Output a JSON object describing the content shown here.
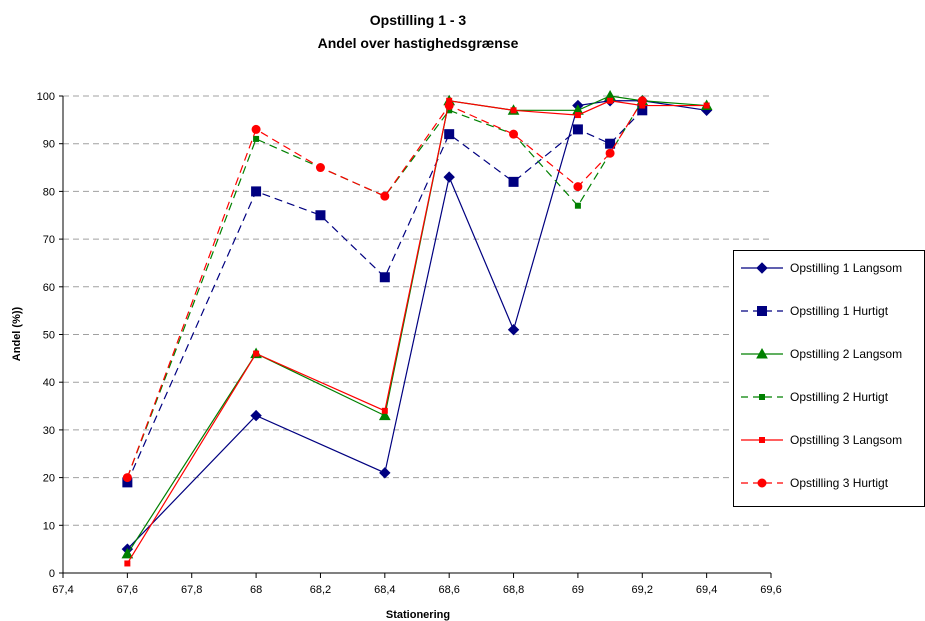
{
  "chart_data": {
    "type": "line",
    "title": "Opstilling 1 - 3",
    "subtitle": "Andel over hastighedsgrænse",
    "xlabel": "Stationering",
    "ylabel": "Andel (%))",
    "xlim": [
      67.4,
      69.6
    ],
    "ylim": [
      0,
      100
    ],
    "x_ticks": [
      67.4,
      67.6,
      67.8,
      68,
      68.2,
      68.4,
      68.6,
      68.8,
      69,
      69.2,
      69.4,
      69.6
    ],
    "x_tick_labels": [
      "67,4",
      "67,6",
      "67,8",
      "68",
      "68,2",
      "68,4",
      "68,6",
      "68,8",
      "69",
      "69,2",
      "69,4",
      "69,6"
    ],
    "y_ticks": [
      0,
      10,
      20,
      30,
      40,
      50,
      60,
      70,
      80,
      90,
      100
    ],
    "y_tick_labels": [
      "0",
      "10",
      "20",
      "30",
      "40",
      "50",
      "60",
      "70",
      "80",
      "90",
      "100"
    ],
    "grid": "horizontal dashed",
    "legend_position": "right",
    "series": [
      {
        "name": "Opstilling 1 Langsom",
        "color": "#000080",
        "dash": "solid",
        "marker": "diamond",
        "points": [
          [
            67.6,
            5
          ],
          [
            68,
            33
          ],
          [
            68.4,
            21
          ],
          [
            68.6,
            83
          ],
          [
            68.8,
            51
          ],
          [
            69,
            98
          ],
          [
            69.1,
            99
          ],
          [
            69.2,
            99
          ],
          [
            69.4,
            97
          ]
        ]
      },
      {
        "name": "Opstilling 1 Hurtigt",
        "color": "#000080",
        "dash": "dashed",
        "marker": "square",
        "points": [
          [
            67.6,
            19
          ],
          [
            68,
            80
          ],
          [
            68.2,
            75
          ],
          [
            68.4,
            62
          ],
          [
            68.6,
            92
          ],
          [
            68.8,
            82
          ],
          [
            69,
            93
          ],
          [
            69.1,
            90
          ],
          [
            69.2,
            97
          ]
        ]
      },
      {
        "name": "Opstilling 2 Langsom",
        "color": "#008000",
        "dash": "solid",
        "marker": "triangle",
        "points": [
          [
            67.6,
            4
          ],
          [
            68,
            46
          ],
          [
            68.4,
            33
          ],
          [
            68.6,
            99
          ],
          [
            68.8,
            97
          ],
          [
            69,
            97
          ],
          [
            69.1,
            100
          ],
          [
            69.2,
            99
          ],
          [
            69.4,
            98
          ]
        ]
      },
      {
        "name": "Opstilling 2 Hurtigt",
        "color": "#008000",
        "dash": "dashed",
        "marker": "smallsquare",
        "points": [
          [
            67.6,
            20
          ],
          [
            68,
            91
          ],
          [
            68.2,
            85
          ],
          [
            68.4,
            79
          ],
          [
            68.6,
            97
          ],
          [
            68.8,
            92
          ],
          [
            69,
            77
          ],
          [
            69.1,
            88
          ],
          [
            69.2,
            99
          ]
        ]
      },
      {
        "name": "Opstilling 3 Langsom",
        "color": "#ff0000",
        "dash": "solid",
        "marker": "smallsquare",
        "points": [
          [
            67.6,
            2
          ],
          [
            68,
            46
          ],
          [
            68.4,
            34
          ],
          [
            68.6,
            99
          ],
          [
            68.8,
            97
          ],
          [
            69,
            96
          ],
          [
            69.1,
            99
          ],
          [
            69.2,
            98
          ],
          [
            69.4,
            98
          ]
        ]
      },
      {
        "name": "Opstilling 3 Hurtigt",
        "color": "#ff0000",
        "dash": "dashed",
        "marker": "circle",
        "points": [
          [
            67.6,
            20
          ],
          [
            68,
            93
          ],
          [
            68.2,
            85
          ],
          [
            68.4,
            79
          ],
          [
            68.6,
            98
          ],
          [
            68.8,
            92
          ],
          [
            69,
            81
          ],
          [
            69.1,
            88
          ],
          [
            69.2,
            99
          ]
        ]
      }
    ]
  }
}
